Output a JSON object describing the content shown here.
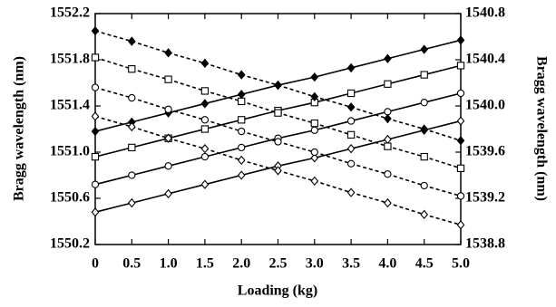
{
  "chart_data": {
    "type": "line",
    "x_label": "Loading  (kg)",
    "y_label": "Bragg wavelength   (nm)",
    "y2_label": "Bragg wavelength   (nm)",
    "x": [
      0,
      0.5,
      1,
      1.5,
      2,
      2.5,
      3,
      3.5,
      4,
      4.5,
      5
    ],
    "xlim": [
      0,
      5
    ],
    "xticks": [
      0,
      0.5,
      {
        "value": 1,
        "label": "1.0"
      },
      1.5,
      {
        "value": 2,
        "label": "2.0"
      },
      2.5,
      {
        "value": 3,
        "label": "3.0"
      },
      3.5,
      {
        "value": 4,
        "label": "4.0"
      },
      4.5,
      {
        "value": 5,
        "label": "5.0"
      }
    ],
    "ylim": [
      1550.2,
      1552.2
    ],
    "yticks": [
      1550.2,
      1550.6,
      {
        "value": 1551,
        "label": "1551.0"
      },
      1551.4,
      1551.8,
      1552.2
    ],
    "y2lim": [
      1538.8,
      1540.8
    ],
    "y2ticks": [
      1538.8,
      1539.2,
      1539.6,
      {
        "value": 1540,
        "label": "1540.0"
      },
      1540.4,
      1540.8
    ],
    "series": [
      {
        "color": "#000000",
        "marker": "diamond-filled",
        "linestyle": "solid",
        "values": [
          1551.18,
          1551.26,
          1551.34,
          1551.42,
          1551.5,
          1551.58,
          1551.65,
          1551.73,
          1551.81,
          1551.89,
          1551.97
        ]
      },
      {
        "color": "#000000",
        "marker": "square",
        "linestyle": "solid",
        "values": [
          1550.96,
          1551.04,
          1551.12,
          1551.2,
          1551.28,
          1551.36,
          1551.43,
          1551.51,
          1551.59,
          1551.67,
          1551.75
        ]
      },
      {
        "color": "#000000",
        "marker": "circle",
        "linestyle": "solid",
        "values": [
          1550.72,
          1550.8,
          1550.88,
          1550.96,
          1551.04,
          1551.12,
          1551.19,
          1551.27,
          1551.35,
          1551.43,
          1551.51
        ]
      },
      {
        "color": "#000000",
        "marker": "diamond",
        "linestyle": "solid",
        "values": [
          1550.48,
          1550.56,
          1550.64,
          1550.72,
          1550.8,
          1550.88,
          1550.95,
          1551.03,
          1551.11,
          1551.19,
          1551.27
        ]
      },
      {
        "color": "#000000",
        "marker": "diamond-filled",
        "linestyle": "dashed",
        "axis": "y2",
        "values": [
          1540.65,
          1540.56,
          1540.46,
          1540.37,
          1540.27,
          1540.18,
          1540.08,
          1539.99,
          1539.89,
          1539.8,
          1539.7
        ]
      },
      {
        "color": "#000000",
        "marker": "square",
        "linestyle": "dashed",
        "axis": "y2",
        "values": [
          1540.42,
          1540.32,
          1540.23,
          1540.13,
          1540.04,
          1539.94,
          1539.85,
          1539.75,
          1539.65,
          1539.56,
          1539.46
        ]
      },
      {
        "color": "#000000",
        "marker": "circle",
        "linestyle": "dashed",
        "axis": "y2",
        "values": [
          1540.16,
          1540.07,
          1539.97,
          1539.88,
          1539.78,
          1539.69,
          1539.6,
          1539.5,
          1539.41,
          1539.31,
          1539.22
        ]
      },
      {
        "color": "#000000",
        "marker": "diamond",
        "linestyle": "dashed",
        "axis": "y2",
        "values": [
          1539.91,
          1539.82,
          1539.72,
          1539.63,
          1539.53,
          1539.44,
          1539.35,
          1539.25,
          1539.16,
          1539.06,
          1538.97
        ]
      }
    ]
  }
}
